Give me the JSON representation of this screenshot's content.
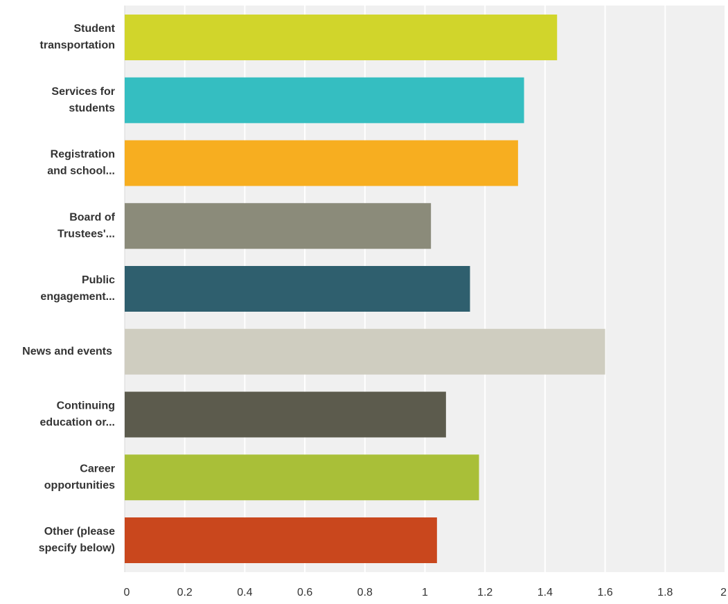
{
  "chart_data": {
    "type": "bar",
    "orientation": "horizontal",
    "title": "",
    "xlabel": "",
    "ylabel": "",
    "categories": [
      [
        "Student",
        "transportation"
      ],
      [
        "Services for",
        "students"
      ],
      [
        "Registration",
        "and school..."
      ],
      [
        "Board of",
        "Trustees'..."
      ],
      [
        "Public",
        "engagement..."
      ],
      [
        "News and events"
      ],
      [
        "Continuing",
        "education or..."
      ],
      [
        "Career",
        "opportunities"
      ],
      [
        "Other (please",
        "specify below)"
      ]
    ],
    "values": [
      1.44,
      1.33,
      1.31,
      1.02,
      1.15,
      1.6,
      1.07,
      1.18,
      1.04
    ],
    "colors": [
      "#d1d52b",
      "#35bec1",
      "#f7ae20",
      "#8b8b7a",
      "#2f5f6e",
      "#cfcdc0",
      "#5c5b4d",
      "#a9bf38",
      "#c9471d"
    ],
    "xlim": [
      0,
      2
    ],
    "xticks": [
      "0",
      "0.2",
      "0.4",
      "0.6",
      "0.8",
      "1",
      "1.2",
      "1.4",
      "1.6",
      "1.8",
      "2"
    ],
    "grid": true,
    "legend": "none",
    "plot_background": "#f0f0f0",
    "gridline_color": "#ffffff"
  }
}
